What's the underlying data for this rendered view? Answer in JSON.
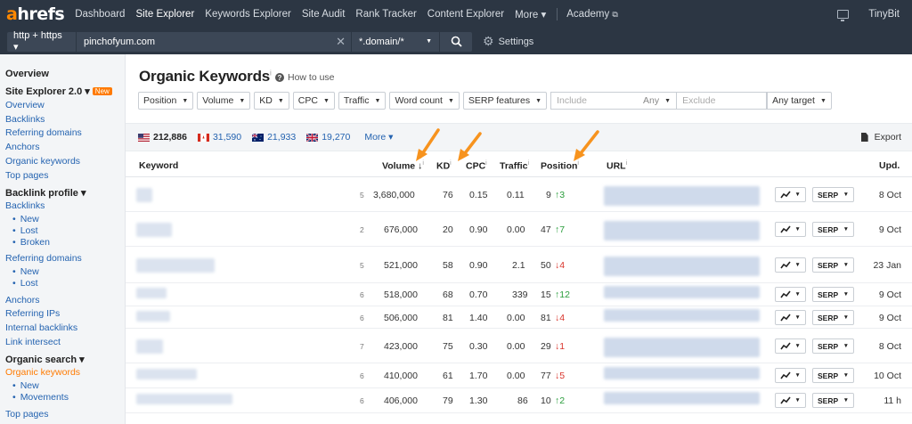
{
  "nav": {
    "logo_a": "a",
    "logo_rest": "hrefs",
    "items": [
      "Dashboard",
      "Site Explorer",
      "Keywords Explorer",
      "Site Audit",
      "Rank Tracker",
      "Content Explorer",
      "More ▾"
    ],
    "academy": "Academy",
    "user": "TinyBit"
  },
  "search": {
    "protocol": "http + https ▾",
    "domain": "pinchofyum.com",
    "mode": "*.domain/*",
    "settings": "Settings"
  },
  "sidebar": {
    "overview_title": "Overview",
    "se2_title": "Site Explorer 2.0 ▾",
    "new_badge": "New",
    "se2_links": [
      "Overview",
      "Backlinks",
      "Referring domains",
      "Anchors",
      "Organic keywords",
      "Top pages"
    ],
    "backlink_title": "Backlink profile ▾",
    "backlinks": "Backlinks",
    "backlinks_sub": [
      "New",
      "Lost",
      "Broken"
    ],
    "refdomains": "Referring domains",
    "refdomains_sub": [
      "New",
      "Lost"
    ],
    "more_links": [
      "Anchors",
      "Referring IPs",
      "Internal backlinks",
      "Link intersect"
    ],
    "organic_title": "Organic search ▾",
    "organic_keywords": "Organic keywords",
    "organic_sub": [
      "New",
      "Movements"
    ],
    "top_pages": "Top pages"
  },
  "main": {
    "title": "Organic Keywords",
    "title_info": "i",
    "howto": "How to use",
    "filters": [
      "Position",
      "Volume",
      "KD",
      "CPC",
      "Traffic",
      "Word count",
      "SERP features"
    ],
    "include_placeholder": "Include",
    "include_any": "Any",
    "exclude_placeholder": "Exclude",
    "any_target": "Any target",
    "countries": [
      {
        "code": "us",
        "count": "212,886"
      },
      {
        "code": "ca",
        "count": "31,590"
      },
      {
        "code": "au",
        "count": "21,933"
      },
      {
        "code": "gb",
        "count": "19,270"
      }
    ],
    "more": "More ▾",
    "export": "Export",
    "columns": {
      "keyword": "Keyword",
      "volume": "Volume ↓",
      "kd": "KD",
      "cpc": "CPC",
      "traffic": "Traffic",
      "position": "Position",
      "url": "URL",
      "upd": "Upd."
    },
    "serp_label": "SERP",
    "rows": [
      {
        "sf": "5",
        "volume": "3,680,000",
        "kd": "76",
        "cpc": "0.15",
        "traffic": "0.11",
        "pos": "9",
        "dir": "up",
        "chg": "3",
        "upd": "8 Oct"
      },
      {
        "sf": "2",
        "volume": "676,000",
        "kd": "20",
        "cpc": "0.90",
        "traffic": "0.00",
        "pos": "47",
        "dir": "up",
        "chg": "7",
        "upd": "9 Oct"
      },
      {
        "sf": "5",
        "volume": "521,000",
        "kd": "58",
        "cpc": "0.90",
        "traffic": "2.1",
        "pos": "50",
        "dir": "down",
        "chg": "4",
        "upd": "23 Jan"
      },
      {
        "sf": "6",
        "volume": "518,000",
        "kd": "68",
        "cpc": "0.70",
        "traffic": "339",
        "pos": "15",
        "dir": "up",
        "chg": "12",
        "upd": "9 Oct"
      },
      {
        "sf": "6",
        "volume": "506,000",
        "kd": "81",
        "cpc": "1.40",
        "traffic": "0.00",
        "pos": "81",
        "dir": "down",
        "chg": "4",
        "upd": "9 Oct"
      },
      {
        "sf": "7",
        "volume": "423,000",
        "kd": "75",
        "cpc": "0.30",
        "traffic": "0.00",
        "pos": "29",
        "dir": "down",
        "chg": "1",
        "upd": "8 Oct"
      },
      {
        "sf": "6",
        "volume": "410,000",
        "kd": "61",
        "cpc": "1.70",
        "traffic": "0.00",
        "pos": "77",
        "dir": "down",
        "chg": "5",
        "upd": "10 Oct"
      },
      {
        "sf": "6",
        "volume": "406,000",
        "kd": "79",
        "cpc": "1.30",
        "traffic": "86",
        "pos": "10",
        "dir": "up",
        "chg": "2",
        "upd": "11 h"
      }
    ]
  },
  "colors": {
    "nav_bg": "#2c3643",
    "accent": "#ff8800",
    "link": "#2463b0",
    "up": "#2a9d3c",
    "down": "#d9342b"
  }
}
